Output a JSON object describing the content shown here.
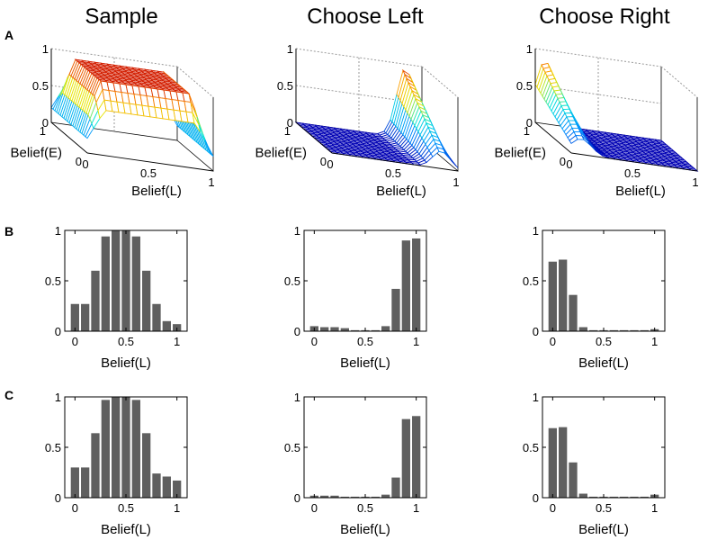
{
  "figure": {
    "row_labels": [
      "A",
      "B",
      "C"
    ],
    "column_titles": [
      "Sample",
      "Choose Left",
      "Choose Right"
    ]
  },
  "colors": {
    "bar_fill": "#5f5f5f",
    "surface_blue": "#0000b4",
    "surface_red": "#c80000",
    "axis": "#000000"
  },
  "chart_data": [
    {
      "panel": "A-1",
      "type": "surface3d",
      "title": "Sample",
      "xlabel": "Belief(L)",
      "ylabel": "Belief(E)",
      "x_ticks": [
        "0",
        "0.5",
        "1"
      ],
      "y_ticks": [
        "0",
        "1"
      ],
      "z_ticks": [
        "0",
        "0.5",
        "1"
      ],
      "zlim": [
        0,
        1
      ],
      "description_shape": "plateau"
    },
    {
      "panel": "A-2",
      "type": "surface3d",
      "title": "Choose Left",
      "xlabel": "Belief(L)",
      "ylabel": "Belief(E)",
      "x_ticks": [
        "0",
        "0.5",
        "1"
      ],
      "y_ticks": [
        "0",
        "1"
      ],
      "z_ticks": [
        "0",
        "0.5",
        "1"
      ],
      "zlim": [
        0,
        1
      ],
      "description_shape": "peak-high-L"
    },
    {
      "panel": "A-3",
      "type": "surface3d",
      "title": "Choose Right",
      "xlabel": "Belief(L)",
      "ylabel": "Belief(E)",
      "x_ticks": [
        "0",
        "0.5",
        "1"
      ],
      "y_ticks": [
        "0",
        "1"
      ],
      "z_ticks": [
        "0",
        "0.5",
        "1"
      ],
      "zlim": [
        0,
        1
      ],
      "description_shape": "peak-low-L"
    },
    {
      "panel": "B-1",
      "type": "bar",
      "xlabel": "Belief(L)",
      "x": [
        0,
        0.1,
        0.2,
        0.3,
        0.4,
        0.5,
        0.6,
        0.7,
        0.8,
        0.9,
        1.0
      ],
      "values": [
        0.27,
        0.27,
        0.6,
        0.94,
        1.0,
        1.0,
        0.94,
        0.6,
        0.27,
        0.1,
        0.07
      ],
      "xlim": [
        -0.1,
        1.1
      ],
      "ylim": [
        0,
        1
      ],
      "x_ticks": [
        "0",
        "0.5",
        "1"
      ],
      "y_ticks": [
        "0",
        "0.5",
        "1"
      ]
    },
    {
      "panel": "B-2",
      "type": "bar",
      "xlabel": "Belief(L)",
      "x": [
        0,
        0.1,
        0.2,
        0.3,
        0.4,
        0.5,
        0.6,
        0.7,
        0.8,
        0.9,
        1.0
      ],
      "values": [
        0.05,
        0.04,
        0.04,
        0.03,
        0.01,
        0.01,
        0.01,
        0.05,
        0.42,
        0.9,
        0.92
      ],
      "xlim": [
        -0.1,
        1.1
      ],
      "ylim": [
        0,
        1
      ],
      "x_ticks": [
        "0",
        "0.5",
        "1"
      ],
      "y_ticks": [
        "0",
        "0.5",
        "1"
      ]
    },
    {
      "panel": "B-3",
      "type": "bar",
      "xlabel": "Belief(L)",
      "x": [
        0,
        0.1,
        0.2,
        0.3,
        0.4,
        0.5,
        0.6,
        0.7,
        0.8,
        0.9,
        1.0
      ],
      "values": [
        0.69,
        0.71,
        0.36,
        0.04,
        0.01,
        0.01,
        0.01,
        0.01,
        0.01,
        0.01,
        0.02
      ],
      "xlim": [
        -0.1,
        1.1
      ],
      "ylim": [
        0,
        1
      ],
      "x_ticks": [
        "0",
        "0.5",
        "1"
      ],
      "y_ticks": [
        "0",
        "0.5",
        "1"
      ]
    },
    {
      "panel": "C-1",
      "type": "bar",
      "xlabel": "Belief(L)",
      "x": [
        0,
        0.1,
        0.2,
        0.3,
        0.4,
        0.5,
        0.6,
        0.7,
        0.8,
        0.9,
        1.0
      ],
      "values": [
        0.3,
        0.3,
        0.64,
        0.97,
        1.0,
        1.0,
        0.97,
        0.64,
        0.24,
        0.21,
        0.17
      ],
      "xlim": [
        -0.1,
        1.1
      ],
      "ylim": [
        0,
        1
      ],
      "x_ticks": [
        "0",
        "0.5",
        "1"
      ],
      "y_ticks": [
        "0",
        "0.5",
        "1"
      ]
    },
    {
      "panel": "C-2",
      "type": "bar",
      "xlabel": "Belief(L)",
      "x": [
        0,
        0.1,
        0.2,
        0.3,
        0.4,
        0.5,
        0.6,
        0.7,
        0.8,
        0.9,
        1.0
      ],
      "values": [
        0.02,
        0.02,
        0.02,
        0.01,
        0.01,
        0.01,
        0.01,
        0.03,
        0.2,
        0.78,
        0.81
      ],
      "xlim": [
        -0.1,
        1.1
      ],
      "ylim": [
        0,
        1
      ],
      "x_ticks": [
        "0",
        "0.5",
        "1"
      ],
      "y_ticks": [
        "0",
        "0.5",
        "1"
      ]
    },
    {
      "panel": "C-3",
      "type": "bar",
      "xlabel": "Belief(L)",
      "x": [
        0,
        0.1,
        0.2,
        0.3,
        0.4,
        0.5,
        0.6,
        0.7,
        0.8,
        0.9,
        1.0
      ],
      "values": [
        0.69,
        0.7,
        0.35,
        0.04,
        0.01,
        0.01,
        0.01,
        0.01,
        0.01,
        0.01,
        0.03
      ],
      "xlim": [
        -0.1,
        1.1
      ],
      "ylim": [
        0,
        1
      ],
      "x_ticks": [
        "0",
        "0.5",
        "1"
      ],
      "y_ticks": [
        "0",
        "0.5",
        "1"
      ]
    }
  ]
}
